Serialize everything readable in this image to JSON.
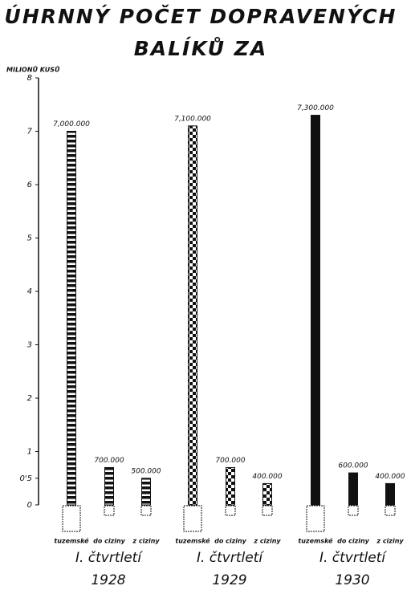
{
  "chart_data": {
    "type": "bar",
    "title": [
      "ÚHRNNÝ POČET DOPRAVENÝCH",
      "BALÍKŮ ZA"
    ],
    "y_label": "MILIONŮ KUSŮ",
    "categories": [
      "1928",
      "1929",
      "1930"
    ],
    "category_prefix": [
      "I. čtvrtletí",
      "I. čtvrtletí",
      "I. čtvrtletí"
    ],
    "fill_patterns": [
      "stripes",
      "checker",
      "solid"
    ],
    "series": [
      {
        "name": "tuzemské",
        "color": "#111111",
        "values": [
          7.0,
          7.1,
          7.3
        ],
        "value_labels": [
          "7,000.000",
          "7,100.000",
          "7,300.000"
        ]
      },
      {
        "name": "do ciziny",
        "color": "#111111",
        "values": [
          0.7,
          0.7,
          0.6
        ],
        "value_labels": [
          "700.000",
          "700.000",
          "600.000"
        ]
      },
      {
        "name": "z ciziny",
        "color": "#111111",
        "values": [
          0.5,
          0.4,
          0.4
        ],
        "value_labels": [
          "500.000",
          "400.000",
          "400.000"
        ]
      }
    ],
    "ylim": [
      0,
      8
    ],
    "yticks": [
      0,
      {
        "value": 0.5,
        "label": "0'5"
      },
      1,
      2,
      3,
      4,
      5,
      6,
      7,
      8
    ]
  }
}
